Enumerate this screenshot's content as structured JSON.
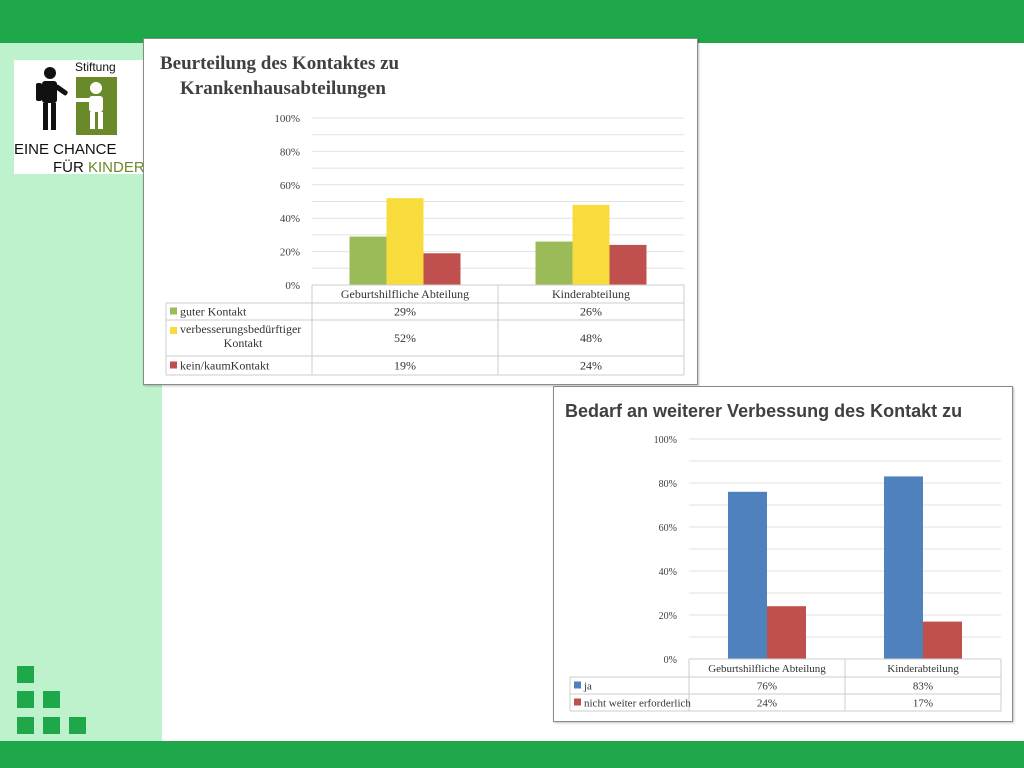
{
  "logo": {
    "stiftung": "Stiftung",
    "line1": "EINE CHANCE",
    "line2a": "FÜR ",
    "line2b": "KINDER",
    "figure_icon": "parent-child-figure-icon",
    "accent_color": "#6a8a2a"
  },
  "colors": {
    "top_bar": "#1fa84a",
    "left_panel": "#bdf2cc"
  },
  "chart_data": [
    {
      "type": "bar",
      "title_line1": "Beurteilung des Kontaktes zu",
      "title_line2": "Krankenhausabteilungen",
      "categories": [
        "Geburtshilfliche Abteilung",
        "Kinderabteilung"
      ],
      "yticks": [
        "0%",
        "20%",
        "40%",
        "60%",
        "80%",
        "100%"
      ],
      "ylim": [
        0,
        100
      ],
      "grid": true,
      "series": [
        {
          "name": "guter Kontakt",
          "name_lines": [
            "guter Kontakt"
          ],
          "color": "#9bbb59",
          "values": [
            29,
            26
          ],
          "labels": [
            "29%",
            "26%"
          ]
        },
        {
          "name": "verbesserungsbedürftiger Kontakt",
          "name_lines": [
            "verbesserungsbedürftiger",
            "Kontakt"
          ],
          "color": "#f8dc3e",
          "values": [
            52,
            48
          ],
          "labels": [
            "52%",
            "48%"
          ]
        },
        {
          "name": "kein/kaumKontakt",
          "name_lines": [
            "kein/kaumKontakt"
          ],
          "color": "#c0504d",
          "values": [
            19,
            24
          ],
          "labels": [
            "19%",
            "24%"
          ]
        }
      ]
    },
    {
      "type": "bar",
      "title_line1": "Bedarf an weiterer Verbessung des Kontakt zu",
      "categories": [
        "Geburtshilfliche Abteilung",
        "Kinderabteilung"
      ],
      "yticks": [
        "0%",
        "20%",
        "40%",
        "60%",
        "80%",
        "100%"
      ],
      "ylim": [
        0,
        100
      ],
      "grid": true,
      "series": [
        {
          "name": "ja",
          "name_lines": [
            "ja"
          ],
          "color": "#4f81bd",
          "values": [
            76,
            83
          ],
          "labels": [
            "76%",
            "83%"
          ]
        },
        {
          "name": "nicht weiter erforderlich",
          "name_lines": [
            "nicht weiter erforderlich"
          ],
          "color": "#c0504d",
          "values": [
            24,
            17
          ],
          "labels": [
            "24%",
            "17%"
          ]
        }
      ]
    }
  ]
}
